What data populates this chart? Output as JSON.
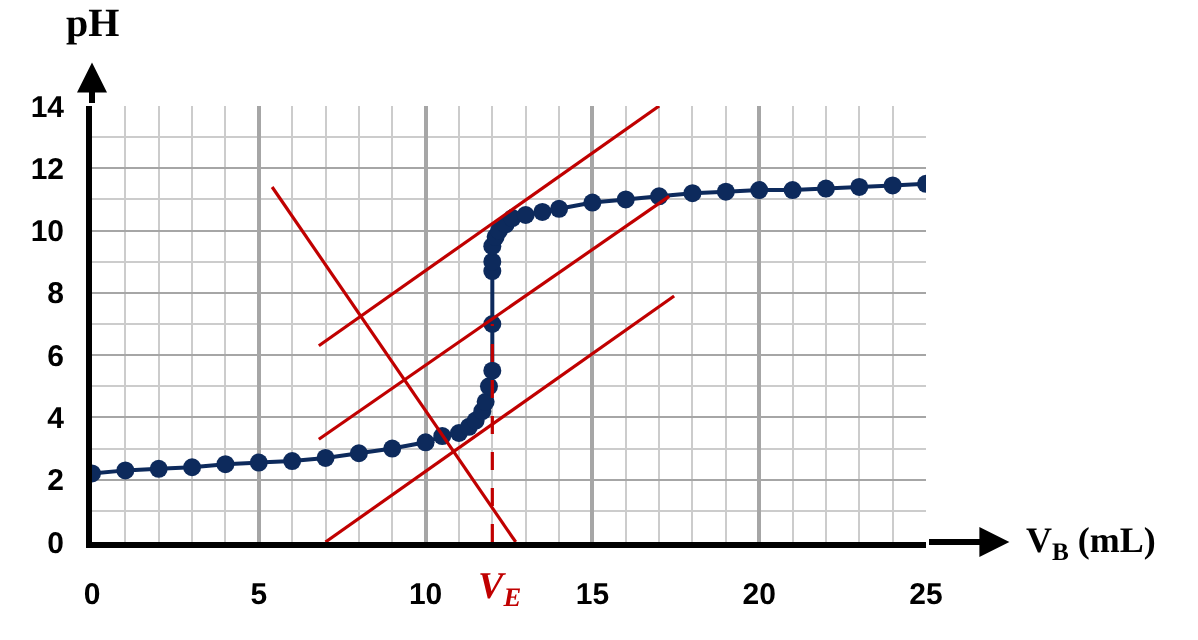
{
  "chart_data": {
    "type": "line",
    "xlabel": "V$_{B}$ (mL)",
    "ylabel": "pH",
    "xlim": [
      0,
      25
    ],
    "ylim": [
      0,
      14
    ],
    "xticks": [
      0,
      5,
      10,
      15,
      20,
      25
    ],
    "yticks": [
      0,
      2,
      4,
      6,
      8,
      10,
      12,
      14
    ],
    "grid": true,
    "series": [
      {
        "color": "#0d2a5c",
        "marker": "circle",
        "line_style": "solid",
        "x": [
          0,
          1,
          2,
          3,
          4,
          5,
          6,
          7,
          8,
          9,
          10,
          10.5,
          11,
          11.3,
          11.5,
          11.7,
          11.8,
          11.9,
          12,
          12,
          12,
          12,
          12,
          12.1,
          12.2,
          12.4,
          12.6,
          13,
          13.5,
          14,
          15,
          16,
          17,
          18,
          19,
          20,
          21,
          22,
          23,
          24,
          25
        ],
        "values": [
          2.2,
          2.3,
          2.35,
          2.4,
          2.5,
          2.55,
          2.6,
          2.7,
          2.85,
          3.0,
          3.2,
          3.4,
          3.5,
          3.7,
          3.9,
          4.2,
          4.5,
          5.0,
          5.5,
          7.0,
          8.7,
          9.0,
          9.5,
          9.8,
          10.0,
          10.2,
          10.4,
          10.5,
          10.6,
          10.7,
          10.9,
          11.0,
          11.1,
          11.2,
          11.25,
          11.3,
          11.3,
          11.35,
          11.4,
          11.45,
          11.5
        ]
      },
      {
        "color": "#c00000",
        "marker": "none",
        "line_style": "solid",
        "x": [
          6.8,
          17.0
        ],
        "values": [
          6.3,
          14
        ]
      },
      {
        "color": "#c00000",
        "marker": "none",
        "line_style": "solid",
        "x": [
          6.8,
          17.3
        ],
        "values": [
          3.3,
          11.1
        ]
      },
      {
        "color": "#c00000",
        "marker": "none",
        "line_style": "solid",
        "x": [
          7.0,
          17.45
        ],
        "values": [
          0,
          7.9
        ]
      },
      {
        "color": "#c00000",
        "marker": "none",
        "line_style": "solid",
        "x": [
          5.4,
          12.7
        ],
        "values": [
          11.4,
          0
        ]
      },
      {
        "color": "#c00000",
        "marker": "none",
        "line_style": "dashed",
        "x": [
          12,
          12
        ],
        "values": [
          0,
          7
        ]
      }
    ],
    "annotations": [
      {
        "text": "V$_{E}$",
        "x": 12,
        "y": 0
      }
    ]
  }
}
